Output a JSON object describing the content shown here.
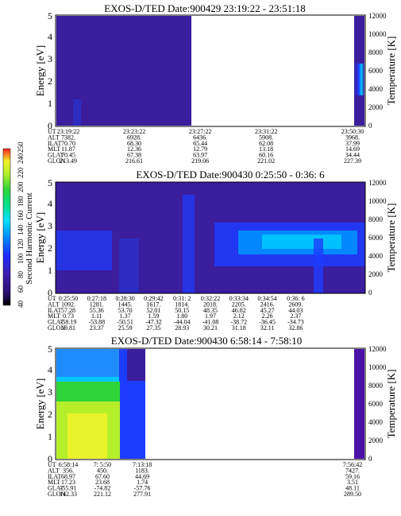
{
  "colorbar": {
    "label": "Second Harmonic Current",
    "ticks": [
      "40",
      "60",
      "80",
      "100",
      "120",
      "140",
      "160",
      "180",
      "200",
      "220",
      "240",
      "250"
    ]
  },
  "colors": {
    "background_panel": "#3a1a9e",
    "deep_purple": "#3b1f9c",
    "blue": "#1e3cff",
    "cyan": "#00c8ff",
    "green": "#2fd43a",
    "yellow": "#e9f22a"
  },
  "chart_data": [
    {
      "type": "heatmap",
      "title": "EXOS-D/TED  Date:900429  23:19:22 - 23:51:18",
      "ylabel": "Energy [eV]",
      "ylabel_right": "Temperature [K]",
      "ylim": [
        0,
        5
      ],
      "yticks": [
        "0",
        "1",
        "2",
        "3",
        "4",
        "5"
      ],
      "ylim_right": [
        0,
        12000
      ],
      "yticks_right": [
        "0",
        "2000",
        "4000",
        "6000",
        "8000",
        "10000",
        "12000"
      ],
      "row_labels": [
        "UT",
        "ALT",
        "ILAT",
        "MLT",
        "GLAT",
        "GLON"
      ],
      "columns": [
        {
          "x": 0.0,
          "values": [
            "23:19:22",
            "7382.",
            "70.70",
            "11.87",
            "70.45",
            "213.49"
          ]
        },
        {
          "x": 0.232,
          "values": [
            "23:23:22",
            "6928.",
            "68.30",
            "12.36",
            "67.38",
            "216.61"
          ]
        },
        {
          "x": 0.464,
          "values": [
            "23:27:22",
            "6436.",
            "65.44",
            "12.79",
            "63.97",
            "219.06"
          ]
        },
        {
          "x": 0.696,
          "values": [
            "23:31:22",
            "5908.",
            "62.08",
            "13.18",
            "60.16",
            "221.02"
          ]
        },
        {
          "x": 1.0,
          "values": [
            "23:50:30",
            "3968.",
            "37.99",
            "14.69",
            "34.44",
            "227.39"
          ]
        }
      ],
      "data_coverage": [
        [
          0.0,
          0.7
        ],
        [
          0.98,
          1.0
        ]
      ]
    },
    {
      "type": "heatmap",
      "title": "EXOS-D/TED   Date:900430   0:25:50 - 0:36: 6",
      "ylabel": "Energy [eV]",
      "ylabel_right": "Temperature [K]",
      "ylim": [
        0,
        5
      ],
      "yticks": [
        "0",
        "1",
        "2",
        "3",
        "4",
        "5"
      ],
      "ylim_right": [
        0,
        12000
      ],
      "yticks_right": [
        "0",
        "2000",
        "4000",
        "6000",
        "8000",
        "10000",
        "12000"
      ],
      "row_labels": [
        "UT",
        "ALT",
        "ILAT",
        "MLT",
        "GLAT",
        "GLON"
      ],
      "columns": [
        {
          "x": 0.0,
          "values": [
            "0:25:50",
            "1092.",
            "57.28",
            "0.73",
            "-58.19",
            "19.81"
          ]
        },
        {
          "x": 0.1,
          "values": [
            "0:27:18",
            "1281.",
            "55.36",
            "1.11",
            "-53.88",
            "23.37"
          ]
        },
        {
          "x": 0.2,
          "values": [
            "0:28:30",
            "1445.",
            "53.70",
            "1.37",
            "-50.51",
            "25.59"
          ]
        },
        {
          "x": 0.3,
          "values": [
            "0:29:42",
            "1617.",
            "52.01",
            "1.59",
            "-47.32",
            "27.35"
          ]
        },
        {
          "x": 0.4,
          "values": [
            "0:31: 2",
            "1814.",
            "50.15",
            "1.80",
            "-44.04",
            "28.93"
          ]
        },
        {
          "x": 0.5,
          "values": [
            "0:32:22",
            "2018.",
            "48.35",
            "1.97",
            "-41.08",
            "30.21"
          ]
        },
        {
          "x": 0.6,
          "values": [
            "0:33:34",
            "2205.",
            "46.82",
            "2.12",
            "-38.72",
            "31.18"
          ]
        },
        {
          "x": 0.7,
          "values": [
            "0:34:54",
            "2416.",
            "45.27",
            "2.26",
            "-36.45",
            "32.11"
          ]
        },
        {
          "x": 0.8,
          "values": [
            "0:36: 6",
            "2609.",
            "44.03",
            "2.37",
            "-34.73",
            "32.86"
          ]
        }
      ],
      "data_coverage": [
        [
          0.0,
          1.0
        ]
      ]
    },
    {
      "type": "heatmap",
      "title": "EXOS-D/TED   Date:900430   6:58:14 - 7:58:10",
      "ylabel": "Energy [eV]",
      "ylabel_right": "Temperature [K]",
      "ylim": [
        0,
        5
      ],
      "yticks": [
        "0",
        "1",
        "2",
        "3",
        "4",
        "5"
      ],
      "ylim_right": [
        0,
        12000
      ],
      "yticks_right": [
        "0",
        "2000",
        "4000",
        "6000",
        "8000",
        "10000",
        "12000"
      ],
      "row_labels": [
        "UT",
        "ALT",
        "ILAT",
        "MLT",
        "GLAT",
        "GLON"
      ],
      "columns": [
        {
          "x": 0.0,
          "values": [
            "6:58:14",
            "356.",
            "68.97",
            "17.23",
            "-55.91",
            "142.33"
          ]
        },
        {
          "x": 0.12,
          "values": [
            "7: 5:50",
            "450.",
            "67.60",
            "23.68",
            "-74.82",
            "221.12"
          ]
        },
        {
          "x": 0.26,
          "values": [
            "7:13:18",
            "1183.",
            "44.69",
            "1.74",
            "-57.76",
            "277.91"
          ]
        },
        {
          "x": 1.0,
          "values": [
            "7:56:42",
            "7427.",
            "59.16",
            "3.51",
            "48.11",
            "289.50"
          ]
        }
      ],
      "data_coverage": [
        [
          0.0,
          0.33
        ]
      ]
    }
  ]
}
